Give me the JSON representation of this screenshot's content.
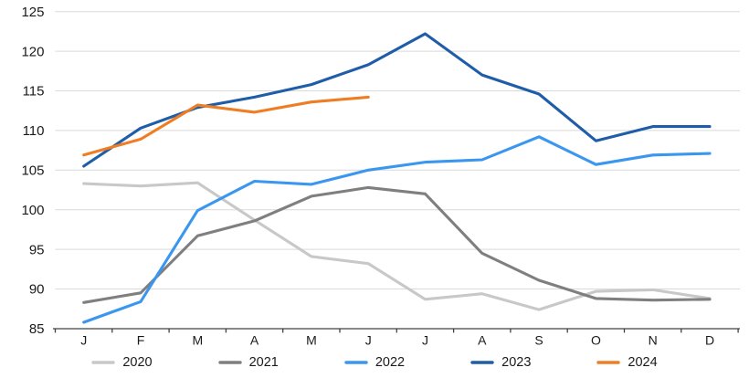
{
  "chart_data": {
    "type": "line",
    "title": "",
    "xlabel": "",
    "ylabel": "",
    "x_tick_labels": [
      "J",
      "F",
      "M",
      "A",
      "M",
      "J",
      "J",
      "A",
      "S",
      "O",
      "N",
      "D"
    ],
    "y_tick_labels": [
      "125",
      "120",
      "115",
      "110",
      "105",
      "100",
      "95",
      "90",
      "85"
    ],
    "ylim": [
      85,
      125
    ],
    "ytick_step": 5,
    "grid": "horizontal",
    "legend_position": "bottom",
    "colors": {
      "gridline": "#d9d9d9",
      "axis_line": "#404040",
      "tick_text": "#1a1a1a",
      "background": "#ffffff"
    },
    "series": [
      {
        "name": "2020",
        "color": "#c8c8c8",
        "values": [
          103.3,
          103.0,
          103.4,
          98.7,
          94.1,
          93.2,
          88.7,
          89.4,
          87.4,
          89.7,
          89.9,
          88.8
        ]
      },
      {
        "name": "2021",
        "color": "#7f7f7f",
        "values": [
          88.3,
          89.5,
          96.7,
          98.6,
          101.7,
          102.8,
          102.0,
          94.5,
          91.1,
          88.8,
          88.6,
          88.7
        ]
      },
      {
        "name": "2022",
        "color": "#3a96ee",
        "values": [
          85.8,
          88.4,
          99.9,
          103.6,
          103.2,
          105.0,
          106.0,
          106.3,
          109.2,
          105.7,
          106.9,
          107.1
        ]
      },
      {
        "name": "2023",
        "color": "#1f5da8",
        "values": [
          105.5,
          110.3,
          112.9,
          114.2,
          115.8,
          118.3,
          122.2,
          117.0,
          114.6,
          108.7,
          110.5,
          110.5
        ]
      },
      {
        "name": "2024",
        "color": "#ee7d23",
        "values": [
          106.9,
          108.9,
          113.2,
          112.3,
          113.6,
          114.2
        ]
      }
    ]
  }
}
